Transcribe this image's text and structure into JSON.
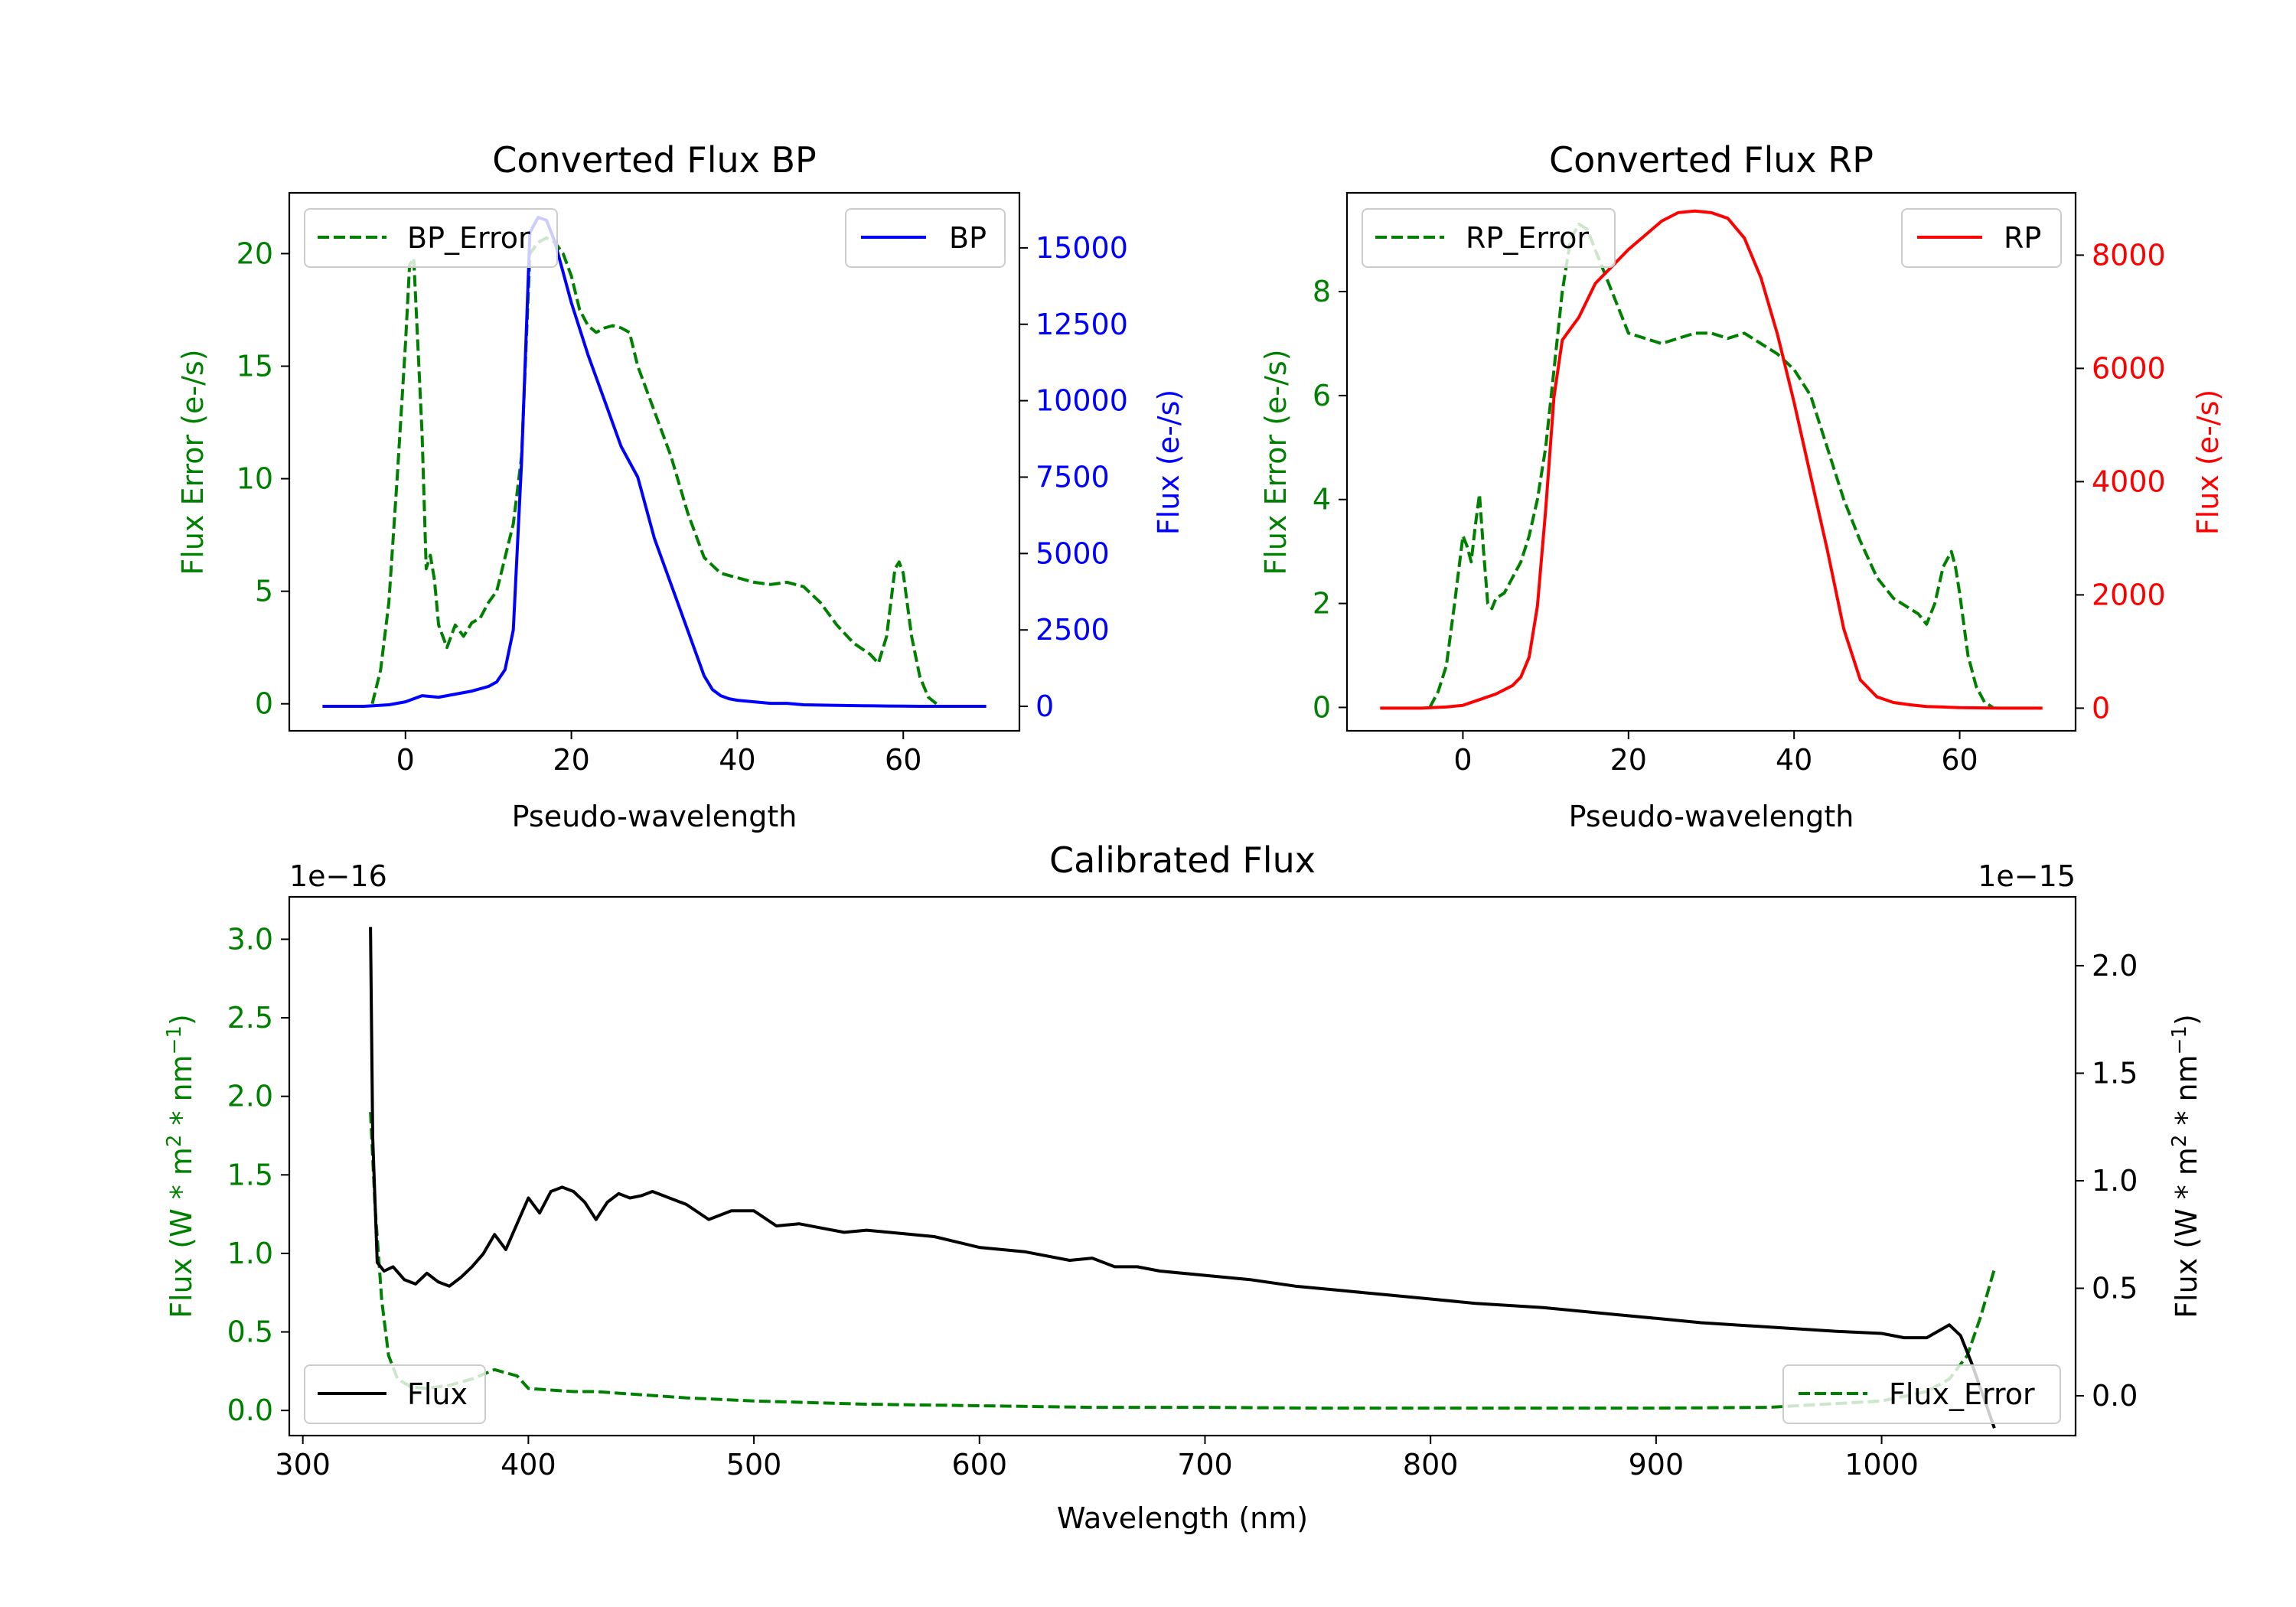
{
  "colors": {
    "error": "#008000",
    "bp": "#0000ff",
    "rp": "#ff0000",
    "flux": "#000000",
    "axis": "#000000",
    "background": "#ffffff"
  },
  "chart_data": [
    {
      "id": "bp",
      "type": "line",
      "title": "Converted Flux BP",
      "xlabel": "Pseudo-wavelength",
      "x_ticks": [
        0,
        20,
        40,
        60
      ],
      "xlim": [
        -14,
        74
      ],
      "left_axis": {
        "label": "Flux Error (e-/s)",
        "ylim": [
          -1.2,
          22.7
        ],
        "ticks": [
          0,
          5,
          10,
          15,
          20
        ],
        "tick_labels": [
          "0",
          "5",
          "10",
          "15",
          "20"
        ]
      },
      "right_axis": {
        "label": "Flux (e-/s)",
        "ylim": [
          -800,
          16800
        ],
        "ticks": [
          0,
          2500,
          5000,
          7500,
          10000,
          12500,
          15000
        ],
        "tick_labels": [
          "0",
          "2500",
          "5000",
          "7500",
          "10000",
          "12500",
          "15000"
        ]
      },
      "legends": {
        "left": "BP_Error",
        "right": "BP"
      },
      "series": [
        {
          "name": "BP_Error",
          "axis": "left",
          "style": "dashed",
          "x": [
            -4,
            -3,
            -2,
            -1,
            0,
            0.5,
            1,
            2,
            2.5,
            3,
            3.5,
            4,
            5,
            6,
            7,
            8,
            9,
            10,
            11,
            12,
            13,
            14,
            15,
            16,
            17,
            18,
            19,
            20,
            21,
            22,
            23,
            24,
            25,
            26,
            27,
            28,
            30,
            32,
            34,
            36,
            38,
            40,
            42,
            44,
            46,
            48,
            50,
            52,
            54,
            56,
            57,
            58,
            59,
            59.5,
            60,
            61,
            62,
            63,
            64
          ],
          "y": [
            0,
            1.5,
            4.5,
            10,
            16,
            19.5,
            19.8,
            12,
            6,
            6.6,
            5.5,
            3.5,
            2.5,
            3.5,
            3,
            3.6,
            3.8,
            4.5,
            5,
            6.5,
            8,
            11,
            20,
            20.5,
            20.7,
            20.5,
            20,
            19,
            17.5,
            16.8,
            16.5,
            16.7,
            16.8,
            16.7,
            16.5,
            15,
            13,
            11,
            8.5,
            6.5,
            5.8,
            5.6,
            5.4,
            5.3,
            5.4,
            5.2,
            4.5,
            3.5,
            2.7,
            2.2,
            1.8,
            3,
            6,
            6.3,
            5.8,
            3,
            1.2,
            0.3,
            0
          ]
        },
        {
          "name": "BP",
          "axis": "right",
          "style": "solid",
          "x": [
            -10,
            -5,
            -2,
            0,
            2,
            4,
            6,
            8,
            10,
            11,
            12,
            13,
            14,
            15,
            16,
            17,
            18,
            19,
            20,
            22,
            24,
            26,
            28,
            30,
            32,
            34,
            36,
            37,
            38,
            39,
            40,
            42,
            44,
            46,
            48,
            50,
            52,
            55,
            58,
            60,
            62,
            65,
            70
          ],
          "y": [
            0,
            0,
            50,
            150,
            350,
            300,
            400,
            500,
            650,
            800,
            1200,
            2500,
            8000,
            15500,
            16000,
            15900,
            15200,
            14200,
            13200,
            11500,
            10000,
            8500,
            7500,
            5500,
            4000,
            2500,
            1000,
            550,
            350,
            250,
            200,
            150,
            100,
            100,
            50,
            40,
            30,
            20,
            10,
            5,
            0,
            0,
            0
          ]
        }
      ]
    },
    {
      "id": "rp",
      "type": "line",
      "title": "Converted Flux RP",
      "xlabel": "Pseudo-wavelength",
      "x_ticks": [
        0,
        20,
        40,
        60
      ],
      "xlim": [
        -14,
        74
      ],
      "left_axis": {
        "label": "Flux Error (e-/s)",
        "ylim": [
          -0.45,
          9.9
        ],
        "ticks": [
          0,
          2,
          4,
          6,
          8
        ],
        "tick_labels": [
          "0",
          "2",
          "4",
          "6",
          "8"
        ]
      },
      "right_axis": {
        "label": "Flux (e-/s)",
        "ylim": [
          -400,
          9100
        ],
        "ticks": [
          0,
          2000,
          4000,
          6000,
          8000
        ],
        "tick_labels": [
          "0",
          "2000",
          "4000",
          "6000",
          "8000"
        ]
      },
      "legends": {
        "left": "RP_Error",
        "right": "RP"
      },
      "series": [
        {
          "name": "RP_Error",
          "axis": "left",
          "style": "dashed",
          "x": [
            -4,
            -3,
            -2,
            -1,
            0,
            0.5,
            1,
            1.5,
            2,
            2.5,
            3,
            3.5,
            4,
            5,
            6,
            7,
            8,
            9,
            10,
            11,
            12,
            13,
            14,
            15,
            16,
            17,
            18,
            19,
            20,
            22,
            24,
            26,
            28,
            30,
            32,
            34,
            36,
            38,
            40,
            42,
            44,
            46,
            48,
            50,
            52,
            54,
            55,
            56,
            57,
            58,
            59,
            59.5,
            60,
            61,
            62,
            63,
            64
          ],
          "y": [
            0,
            0.3,
            0.8,
            2,
            3.3,
            3.1,
            2.8,
            3.5,
            4.1,
            3,
            2,
            1.9,
            2.1,
            2.2,
            2.5,
            2.8,
            3.3,
            4,
            5,
            6.5,
            8,
            9,
            9.3,
            9.2,
            8.8,
            8.4,
            8,
            7.6,
            7.2,
            7.1,
            7.0,
            7.1,
            7.2,
            7.2,
            7.1,
            7.2,
            7.0,
            6.8,
            6.5,
            6.0,
            5.0,
            4.0,
            3.2,
            2.5,
            2.1,
            1.9,
            1.8,
            1.6,
            2.0,
            2.7,
            3.0,
            2.7,
            2.2,
            1.0,
            0.4,
            0.1,
            0
          ]
        },
        {
          "name": "RP",
          "axis": "right",
          "style": "solid",
          "x": [
            -10,
            -5,
            -2,
            0,
            2,
            4,
            6,
            7,
            8,
            9,
            10,
            11,
            12,
            13,
            14,
            15,
            16,
            18,
            20,
            22,
            24,
            26,
            28,
            30,
            32,
            34,
            36,
            38,
            40,
            42,
            44,
            46,
            48,
            50,
            52,
            54,
            56,
            58,
            60,
            62,
            65,
            70
          ],
          "y": [
            0,
            0,
            20,
            50,
            150,
            250,
            400,
            550,
            900,
            1800,
            3500,
            5500,
            6500,
            6700,
            6900,
            7200,
            7500,
            7800,
            8100,
            8350,
            8600,
            8750,
            8780,
            8750,
            8650,
            8300,
            7600,
            6600,
            5400,
            4100,
            2800,
            1400,
            500,
            200,
            100,
            60,
            30,
            20,
            10,
            5,
            0,
            0
          ]
        }
      ]
    },
    {
      "id": "calibrated",
      "type": "line",
      "title": "Calibrated Flux",
      "xlabel": "Wavelength (nm)",
      "x_ticks": [
        300,
        400,
        500,
        600,
        700,
        800,
        900,
        1000
      ],
      "xlim": [
        294,
        1086
      ],
      "left_axis": {
        "label": "Flux (W * m2 * nm-1)",
        "label_parts": [
          "Flux (W * m",
          "2",
          " * nm",
          "−1",
          ")"
        ],
        "multiplier": "1e−16",
        "ylim": [
          -0.16,
          3.27
        ],
        "ticks": [
          0.0,
          0.5,
          1.0,
          1.5,
          2.0,
          2.5,
          3.0
        ],
        "tick_labels": [
          "0.0",
          "0.5",
          "1.0",
          "1.5",
          "2.0",
          "2.5",
          "3.0"
        ]
      },
      "right_axis": {
        "label": "Flux (W * m2 * nm-1)",
        "label_parts": [
          "Flux (W * m",
          "2",
          " * nm",
          "−1",
          ")"
        ],
        "multiplier": "1e−15",
        "ylim": [
          -0.185,
          2.32
        ],
        "ticks": [
          0.0,
          0.5,
          1.0,
          1.5,
          2.0
        ],
        "tick_labels": [
          "0.0",
          "0.5",
          "1.0",
          "1.5",
          "2.0"
        ]
      },
      "legends": {
        "left": "Flux",
        "right": "Flux_Error"
      },
      "series": [
        {
          "name": "Flux_Error",
          "axis": "left",
          "style": "dashed",
          "x": [
            330,
            332,
            335,
            338,
            342,
            348,
            355,
            365,
            375,
            385,
            395,
            400,
            410,
            420,
            430,
            440,
            450,
            470,
            500,
            550,
            600,
            650,
            700,
            750,
            800,
            850,
            900,
            950,
            1000,
            1020,
            1030,
            1038,
            1044,
            1050
          ],
          "y": [
            1.9,
            1.3,
            0.7,
            0.35,
            0.2,
            0.15,
            0.14,
            0.16,
            0.2,
            0.26,
            0.22,
            0.14,
            0.13,
            0.12,
            0.12,
            0.11,
            0.1,
            0.08,
            0.06,
            0.04,
            0.03,
            0.02,
            0.02,
            0.015,
            0.015,
            0.015,
            0.015,
            0.02,
            0.06,
            0.12,
            0.2,
            0.35,
            0.6,
            0.9
          ]
        },
        {
          "name": "Flux",
          "axis": "right",
          "style": "solid",
          "x": [
            330,
            331,
            333,
            336,
            340,
            345,
            350,
            355,
            360,
            365,
            370,
            375,
            380,
            385,
            390,
            395,
            400,
            405,
            410,
            415,
            420,
            425,
            430,
            435,
            440,
            445,
            450,
            455,
            460,
            470,
            480,
            490,
            500,
            510,
            520,
            530,
            540,
            550,
            560,
            580,
            600,
            620,
            640,
            650,
            660,
            670,
            680,
            700,
            720,
            740,
            760,
            780,
            800,
            820,
            850,
            880,
            900,
            920,
            950,
            980,
            1000,
            1010,
            1020,
            1030,
            1035,
            1040,
            1045,
            1050
          ],
          "y": [
            2.18,
            1.2,
            0.62,
            0.58,
            0.6,
            0.54,
            0.52,
            0.57,
            0.53,
            0.51,
            0.55,
            0.6,
            0.66,
            0.75,
            0.68,
            0.8,
            0.92,
            0.85,
            0.95,
            0.97,
            0.95,
            0.9,
            0.82,
            0.9,
            0.94,
            0.92,
            0.93,
            0.95,
            0.93,
            0.89,
            0.82,
            0.86,
            0.86,
            0.79,
            0.8,
            0.78,
            0.76,
            0.77,
            0.76,
            0.74,
            0.69,
            0.67,
            0.63,
            0.64,
            0.6,
            0.6,
            0.58,
            0.56,
            0.54,
            0.51,
            0.49,
            0.47,
            0.45,
            0.43,
            0.41,
            0.38,
            0.36,
            0.34,
            0.32,
            0.3,
            0.29,
            0.27,
            0.27,
            0.33,
            0.28,
            0.15,
            0.0,
            -0.15
          ]
        }
      ]
    }
  ]
}
